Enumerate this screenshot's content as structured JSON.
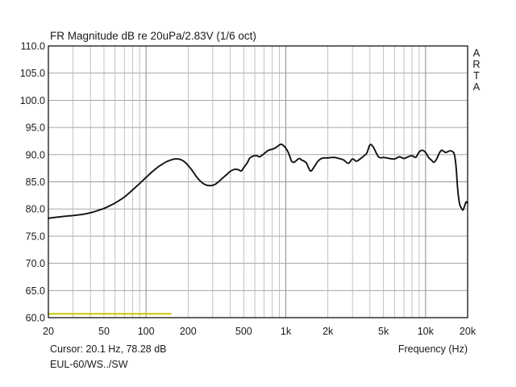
{
  "chart_data": {
    "type": "line",
    "title": "FR Magnitude dB re 20uPa/2.83V (1/6 oct)",
    "xlabel": "Frequency (Hz)",
    "ylabel": "",
    "xscale": "log",
    "xlim": [
      20,
      20000
    ],
    "ylim": [
      60,
      110
    ],
    "grid": true,
    "x_tick_labels": [
      {
        "value": 20,
        "label": "20"
      },
      {
        "value": 50,
        "label": "50"
      },
      {
        "value": 100,
        "label": "100"
      },
      {
        "value": 200,
        "label": "200"
      },
      {
        "value": 500,
        "label": "500"
      },
      {
        "value": 1000,
        "label": "1k"
      },
      {
        "value": 2000,
        "label": "2k"
      },
      {
        "value": 5000,
        "label": "5k"
      },
      {
        "value": 10000,
        "label": "10k"
      },
      {
        "value": 20000,
        "label": "20k"
      }
    ],
    "y_tick_labels": [
      {
        "value": 110,
        "label": "110.0"
      },
      {
        "value": 105,
        "label": "105.0"
      },
      {
        "value": 100,
        "label": "100.0"
      },
      {
        "value": 95,
        "label": "95.0"
      },
      {
        "value": 90,
        "label": "90.0"
      },
      {
        "value": 85,
        "label": "85.0"
      },
      {
        "value": 80,
        "label": "80.0"
      },
      {
        "value": 75,
        "label": "75.0"
      },
      {
        "value": 70,
        "label": "70.0"
      },
      {
        "value": 65,
        "label": "65.0"
      },
      {
        "value": 60,
        "label": "60.0"
      }
    ],
    "series": [
      {
        "color": "#111111",
        "x": [
          20,
          25,
          30,
          35,
          40,
          45,
          50,
          55,
          60,
          70,
          80,
          90,
          100,
          110,
          120,
          130,
          140,
          150,
          160,
          170,
          180,
          190,
          200,
          215,
          230,
          250,
          270,
          290,
          310,
          330,
          350,
          380,
          400,
          430,
          460,
          480,
          500,
          530,
          550,
          580,
          620,
          650,
          700,
          750,
          800,
          850,
          900,
          930,
          960,
          1000,
          1050,
          1100,
          1150,
          1200,
          1250,
          1300,
          1400,
          1500,
          1600,
          1700,
          1800,
          1900,
          2000,
          2200,
          2400,
          2600,
          2800,
          3000,
          3200,
          3400,
          3600,
          3800,
          4000,
          4200,
          4400,
          4600,
          4800,
          5000,
          5500,
          6000,
          6500,
          7000,
          7500,
          8000,
          8500,
          9000,
          9500,
          10000,
          10500,
          11000,
          11500,
          12000,
          12500,
          13000,
          13500,
          14000,
          15000,
          16000,
          16500,
          17000,
          17500,
          18000,
          18500,
          19000,
          19500,
          20000
        ],
        "y": [
          78.3,
          78.6,
          78.8,
          79.0,
          79.3,
          79.7,
          80.1,
          80.6,
          81.1,
          82.2,
          83.5,
          84.7,
          85.8,
          86.8,
          87.6,
          88.2,
          88.7,
          89.0,
          89.2,
          89.2,
          89.0,
          88.6,
          88.0,
          87.0,
          85.9,
          84.9,
          84.4,
          84.3,
          84.5,
          85.0,
          85.6,
          86.4,
          86.9,
          87.3,
          87.2,
          87.0,
          87.6,
          88.5,
          89.3,
          89.7,
          89.8,
          89.6,
          90.2,
          90.8,
          91.0,
          91.3,
          91.8,
          91.9,
          91.7,
          91.2,
          90.2,
          88.8,
          88.6,
          89.0,
          89.3,
          89.0,
          88.5,
          87.0,
          87.8,
          88.8,
          89.3,
          89.4,
          89.4,
          89.5,
          89.3,
          89.0,
          88.4,
          89.2,
          88.8,
          89.2,
          89.7,
          90.3,
          91.8,
          91.5,
          90.5,
          89.6,
          89.4,
          89.5,
          89.3,
          89.2,
          89.6,
          89.3,
          89.6,
          89.8,
          89.5,
          90.5,
          90.8,
          90.4,
          89.5,
          89.0,
          88.6,
          89.2,
          90.2,
          90.8,
          90.6,
          90.4,
          90.7,
          90.2,
          88.0,
          83.5,
          81.0,
          80.2,
          79.8,
          80.5,
          81.3,
          81.1
        ]
      },
      {
        "color": "#c8c800",
        "x": [
          20,
          150
        ],
        "y": [
          60.7,
          60.7
        ]
      }
    ]
  },
  "cursor_readout": "Cursor: 20.1 Hz, 78.28 dB",
  "file_label": "EUL-60/WS../SW",
  "brand_vertical": [
    "A",
    "R",
    "T",
    "A"
  ]
}
